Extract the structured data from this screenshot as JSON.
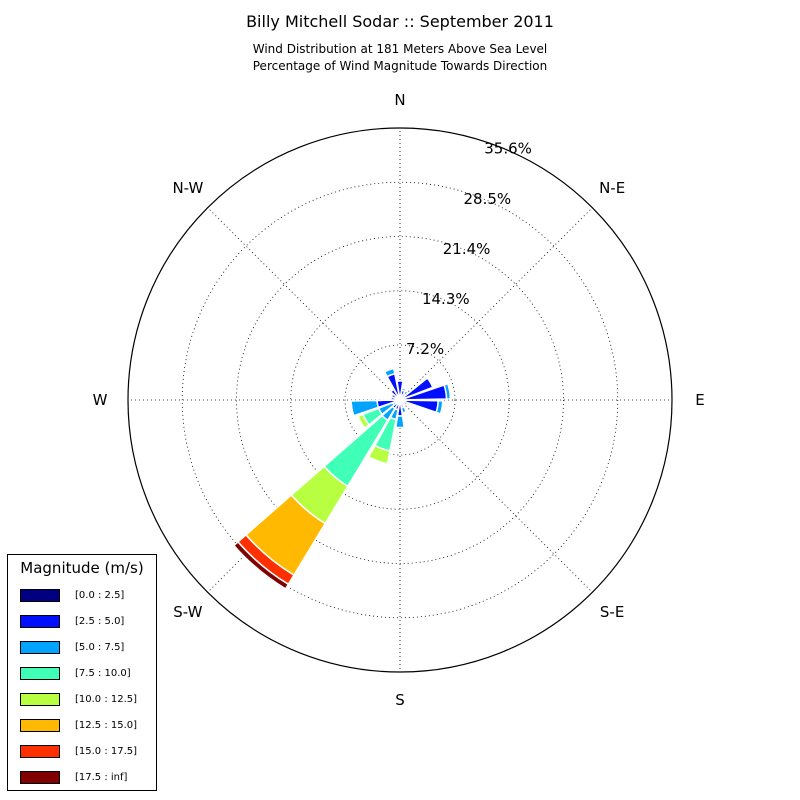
{
  "chart_data": {
    "type": "polar_bar",
    "title": "Billy Mitchell Sodar :: September 2011",
    "subtitle_lines": [
      "Wind Distribution at 181 Meters Above Sea Level",
      "Percentage of Wind Magnitude Towards Direction"
    ],
    "direction_labels": [
      {
        "label": "N",
        "angle_deg": 0
      },
      {
        "label": "N-E",
        "angle_deg": 45
      },
      {
        "label": "E",
        "angle_deg": 90
      },
      {
        "label": "S-E",
        "angle_deg": 135
      },
      {
        "label": "S",
        "angle_deg": 180
      },
      {
        "label": "S-W",
        "angle_deg": 225
      },
      {
        "label": "W",
        "angle_deg": 270
      },
      {
        "label": "N-W",
        "angle_deg": 315
      }
    ],
    "radial_ticks": [
      "7.2%",
      "14.3%",
      "21.4%",
      "28.5%",
      "35.6%"
    ],
    "radial_tick_values": [
      7.2,
      14.3,
      21.4,
      28.5,
      35.6
    ],
    "r_max": 35.6,
    "sector_width_deg": 20,
    "legend": {
      "title": "Magnitude (m/s)",
      "bins": [
        {
          "label": "[0.0 : 2.5]",
          "color": "#000080"
        },
        {
          "label": "[2.5 : 5.0]",
          "color": "#0010ff"
        },
        {
          "label": "[5.0 : 7.5]",
          "color": "#00a4ff"
        },
        {
          "label": "[7.5 : 10.0]",
          "color": "#40ffb7"
        },
        {
          "label": "[10.0 : 12.5]",
          "color": "#b7ff40"
        },
        {
          "label": "[12.5 : 15.0]",
          "color": "#ffb900"
        },
        {
          "label": "[15.0 : 17.5]",
          "color": "#ff3000"
        },
        {
          "label": "[17.5 : inf]",
          "color": "#800000"
        }
      ]
    },
    "series": [
      {
        "direction_deg": 0,
        "cumulative": [
          0.7,
          2.5
        ]
      },
      {
        "direction_deg": 20,
        "cumulative": [
          0.5,
          1.3,
          1.6,
          1.7
        ]
      },
      {
        "direction_deg": 40,
        "cumulative": [
          0.3,
          1.0,
          1.4
        ]
      },
      {
        "direction_deg": 60,
        "cumulative": [
          0.6,
          4.6
        ]
      },
      {
        "direction_deg": 80,
        "cumulative": [
          0.6,
          6.1,
          6.6
        ]
      },
      {
        "direction_deg": 100,
        "cumulative": [
          0.4,
          5.0,
          5.6
        ]
      },
      {
        "direction_deg": 120,
        "cumulative": [
          0.3,
          1.0
        ]
      },
      {
        "direction_deg": 140,
        "cumulative": [
          0.2,
          0.6
        ]
      },
      {
        "direction_deg": 160,
        "cumulative": [
          0.2,
          1.0,
          1.7
        ]
      },
      {
        "direction_deg": 180,
        "cumulative": [
          0.5,
          2.1,
          3.6
        ]
      },
      {
        "direction_deg": 200,
        "cumulative": [
          0.6,
          1.3,
          2.6,
          6.8,
          8.5
        ]
      },
      {
        "direction_deg": 220,
        "cumulative": [
          0.5,
          1.3,
          3.1,
          13.2,
          18.9,
          26.8,
          28.2,
          28.9
        ]
      },
      {
        "direction_deg": 240,
        "cumulative": [
          0.6,
          1.0,
          3.0,
          5.2,
          5.9
        ]
      },
      {
        "direction_deg": 260,
        "cumulative": [
          0.4,
          3.0,
          6.4,
          6.6
        ]
      },
      {
        "direction_deg": 280,
        "cumulative": [
          0.3,
          1.2
        ]
      },
      {
        "direction_deg": 300,
        "cumulative": [
          0.2,
          1.2
        ]
      },
      {
        "direction_deg": 320,
        "cumulative": [
          0.3,
          1.6
        ]
      },
      {
        "direction_deg": 340,
        "cumulative": [
          0.5,
          3.5,
          4.2
        ]
      }
    ]
  }
}
